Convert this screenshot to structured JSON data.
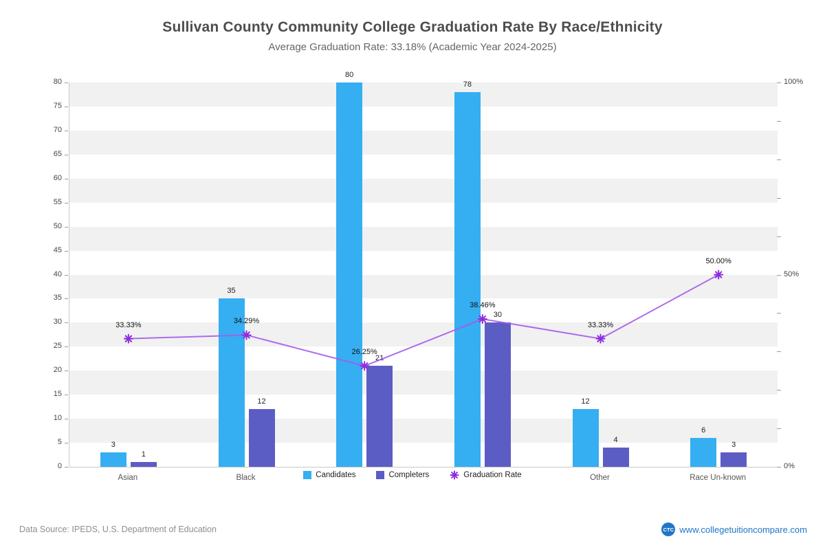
{
  "title": "Sullivan County Community College Graduation Rate By Race/Ethnicity",
  "subtitle": "Average Graduation Rate: 33.18% (Academic Year 2024-2025)",
  "footer": {
    "source": "Data Source: IPEDS, U.S. Department of Education",
    "logo": "CTC",
    "site": "www.collegetuitioncompare.com"
  },
  "colors": {
    "candidates": "#36aef2",
    "completers": "#5c5cc5",
    "rate_line": "#a55ce8",
    "rate_marker": "#8f2be0",
    "band_gray": "#f1f1f1",
    "band_white": "#ffffff",
    "link_blue": "#2176c7"
  },
  "legend": [
    {
      "label": "Candidates",
      "type": "square",
      "color": "#36aef2"
    },
    {
      "label": "Completers",
      "type": "square",
      "color": "#5c5cc5"
    },
    {
      "label": "Graduation Rate",
      "type": "asterisk",
      "color": "#8f2be0"
    }
  ],
  "chart_data": {
    "type": "bar",
    "title": "Sullivan County Community College Graduation Rate By Race/Ethnicity",
    "subtitle": "Average Graduation Rate: 33.18% (Academic Year 2024-2025)",
    "categories": [
      "Asian",
      "Black",
      "",
      "",
      "Other",
      "Race Un-known"
    ],
    "series": [
      {
        "name": "Candidates",
        "type": "bar",
        "color": "#36aef2",
        "values": [
          3,
          35,
          80,
          78,
          12,
          6
        ],
        "value_labels": [
          "3",
          "35",
          "80",
          "78",
          "12",
          "6"
        ]
      },
      {
        "name": "Completers",
        "type": "bar",
        "color": "#5c5cc5",
        "values": [
          1,
          12,
          21,
          30,
          4,
          3
        ],
        "value_labels": [
          "1",
          "12",
          "21",
          "30",
          "4",
          "3"
        ]
      },
      {
        "name": "Graduation Rate",
        "type": "line",
        "axis": "right",
        "color": "#a55ce8",
        "marker_color": "#8f2be0",
        "values": [
          33.33,
          34.29,
          26.25,
          38.46,
          33.33,
          50.0
        ],
        "value_labels": [
          "33.33%",
          "34.29%",
          "26.25%",
          "38.46%",
          "33.33%",
          "50.00%"
        ]
      }
    ],
    "left_axis": {
      "min": 0,
      "max": 80,
      "step": 5
    },
    "right_axis": {
      "min": 0,
      "max": 100,
      "minor_step": 10,
      "label_values": [
        0,
        50,
        100
      ],
      "labels": [
        "0%",
        "50%",
        "100%"
      ]
    },
    "grid": "horizontal-bands",
    "legend_position": "bottom-center"
  }
}
